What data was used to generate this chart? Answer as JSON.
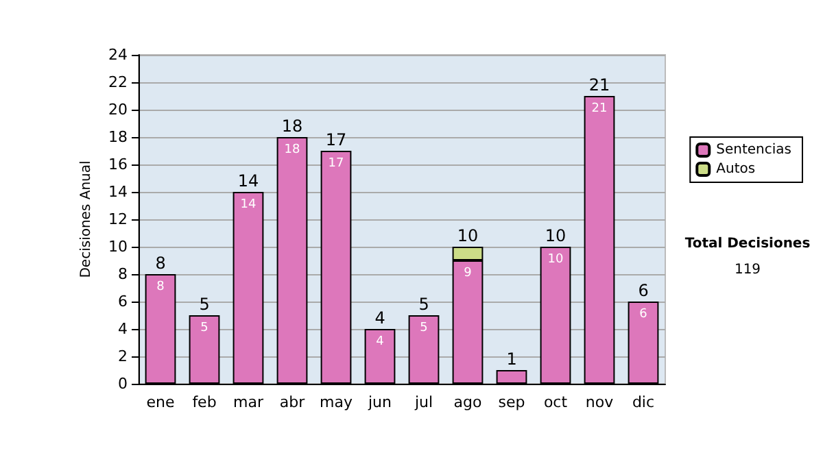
{
  "chart_data": {
    "type": "bar",
    "stacked": true,
    "ylabel": "Decisiones Anual",
    "categories": [
      "ene",
      "feb",
      "mar",
      "abr",
      "may",
      "jun",
      "jul",
      "ago",
      "sep",
      "oct",
      "nov",
      "dic"
    ],
    "series": [
      {
        "name": "Sentencias",
        "color": "#dd77bb",
        "values": [
          8,
          5,
          14,
          18,
          17,
          4,
          5,
          9,
          1,
          10,
          21,
          6
        ],
        "value_labels": [
          "8",
          "5",
          "14",
          "18",
          "17",
          "4",
          "5",
          "9",
          null,
          "10",
          "21",
          "6"
        ]
      },
      {
        "name": "Autos",
        "color": "#ccdd88",
        "values": [
          null,
          null,
          null,
          null,
          null,
          null,
          null,
          1,
          null,
          null,
          null,
          null
        ]
      }
    ],
    "totals": [
      "8",
      "5",
      "14",
      "18",
      "17",
      "4",
      "5",
      "10",
      "1",
      "10",
      "21",
      "6"
    ],
    "ylim": [
      0,
      24
    ],
    "yticks": [
      0,
      2,
      4,
      6,
      8,
      10,
      12,
      14,
      16,
      18,
      20,
      22,
      24
    ],
    "grid": "y",
    "legend": "right",
    "annotations": [
      "Total Decisiones",
      "119"
    ]
  }
}
